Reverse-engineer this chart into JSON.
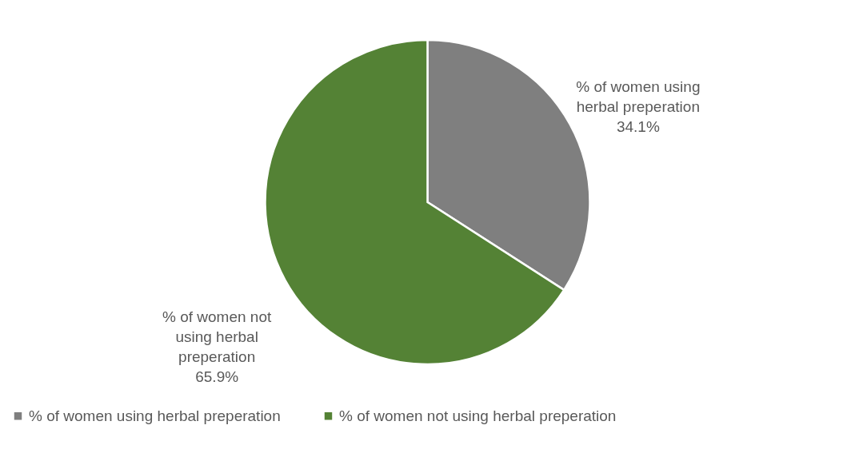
{
  "chart_data": {
    "type": "pie",
    "categories": [
      "% of women using herbal preperation",
      "% of women not using herbal preperation"
    ],
    "values": [
      34.1,
      65.9
    ],
    "colors": [
      "#7f7f7f",
      "#548235"
    ],
    "value_labels": [
      "34.1%",
      "65.9%"
    ],
    "legend": "bottom"
  }
}
